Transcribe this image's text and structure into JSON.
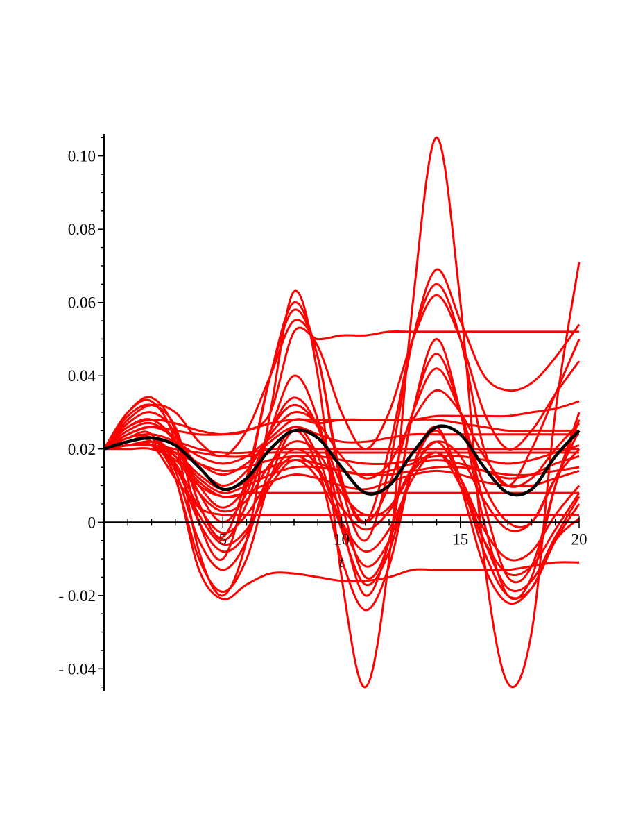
{
  "chart_data": {
    "type": "line",
    "title": "",
    "xlabel": "t",
    "ylabel": "",
    "xlim": [
      0,
      20
    ],
    "ylim": [
      -0.046,
      0.106
    ],
    "grid": false,
    "legend": "none",
    "x_ticks": [
      {
        "value": 5,
        "label": "5"
      },
      {
        "value": 10,
        "label": "10"
      },
      {
        "value": 15,
        "label": "15"
      },
      {
        "value": 20,
        "label": "20"
      }
    ],
    "y_ticks": [
      {
        "value": -0.04,
        "label": "- 0.04"
      },
      {
        "value": -0.02,
        "label": "- 0.02"
      },
      {
        "value": 0,
        "label": "0"
      },
      {
        "value": 0.02,
        "label": "0.02"
      },
      {
        "value": 0.04,
        "label": "0.04"
      },
      {
        "value": 0.06,
        "label": "0.06"
      },
      {
        "value": 0.08,
        "label": "0.08"
      },
      {
        "value": 0.1,
        "label": "0.10"
      }
    ],
    "x": [
      0,
      1,
      2,
      3,
      4,
      5,
      6,
      7,
      8,
      9,
      10,
      11,
      12,
      13,
      14,
      15,
      16,
      17,
      18,
      19,
      20
    ],
    "series": [
      {
        "color": "#000000",
        "width": 4.5,
        "values": [
          0.02,
          0.022,
          0.023,
          0.021,
          0.015,
          0.009,
          0.012,
          0.02,
          0.025,
          0.023,
          0.015,
          0.008,
          0.01,
          0.019,
          0.026,
          0.024,
          0.015,
          0.008,
          0.009,
          0.018,
          0.025
        ]
      },
      {
        "color": "#ff0000",
        "width": 3,
        "values": [
          0.02,
          0.03,
          0.033,
          0.022,
          -0.008,
          -0.02,
          -0.005,
          0.03,
          0.063,
          0.04,
          -0.015,
          -0.045,
          -0.01,
          0.06,
          0.105,
          0.06,
          -0.01,
          -0.044,
          -0.03,
          0.03,
          0.071
        ]
      },
      {
        "color": "#ff0000",
        "width": 3,
        "values": [
          0.02,
          0.03,
          0.034,
          0.025,
          0.0,
          -0.01,
          0.01,
          0.04,
          0.06,
          0.045,
          0.01,
          -0.005,
          0.015,
          0.05,
          0.069,
          0.055,
          0.04,
          0.036,
          0.038,
          0.045,
          0.054
        ]
      },
      {
        "color": "#ff0000",
        "width": 3,
        "values": [
          0.02,
          0.029,
          0.032,
          0.026,
          0.005,
          -0.004,
          0.012,
          0.04,
          0.058,
          0.045,
          0.012,
          0.0,
          0.02,
          0.05,
          0.065,
          0.05,
          0.02,
          0.01,
          0.02,
          0.035,
          0.05
        ]
      },
      {
        "color": "#ff0000",
        "width": 3,
        "values": [
          0.02,
          0.028,
          0.032,
          0.03,
          0.022,
          0.018,
          0.025,
          0.04,
          0.055,
          0.048,
          0.03,
          0.02,
          0.03,
          0.05,
          0.062,
          0.05,
          0.03,
          0.02,
          0.025,
          0.035,
          0.044
        ]
      },
      {
        "color": "#ff0000",
        "width": 3,
        "values": [
          0.02,
          0.026,
          0.028,
          0.027,
          0.025,
          0.024,
          0.025,
          0.03,
          0.052,
          0.05,
          0.051,
          0.051,
          0.052,
          0.052,
          0.052,
          0.052,
          0.052,
          0.052,
          0.052,
          0.052,
          0.052
        ]
      },
      {
        "color": "#ff0000",
        "width": 3,
        "values": [
          0.02,
          0.027,
          0.03,
          0.024,
          0.005,
          -0.005,
          0.005,
          0.025,
          0.04,
          0.028,
          0.0,
          -0.02,
          -0.005,
          0.03,
          0.05,
          0.03,
          0.0,
          -0.02,
          -0.015,
          0.01,
          0.03
        ]
      },
      {
        "color": "#ff0000",
        "width": 3,
        "values": [
          0.02,
          0.026,
          0.028,
          0.022,
          0.008,
          0.0,
          0.008,
          0.025,
          0.034,
          0.026,
          0.005,
          -0.015,
          -0.005,
          0.03,
          0.046,
          0.03,
          0.005,
          -0.015,
          -0.012,
          0.01,
          0.028
        ]
      },
      {
        "color": "#ff0000",
        "width": 3,
        "values": [
          0.02,
          0.025,
          0.027,
          0.022,
          0.01,
          0.004,
          0.01,
          0.025,
          0.032,
          0.026,
          0.01,
          0.0,
          0.01,
          0.03,
          0.042,
          0.03,
          0.01,
          0.0,
          0.0,
          0.012,
          0.025
        ]
      },
      {
        "color": "#ff0000",
        "width": 3,
        "values": [
          0.02,
          0.024,
          0.026,
          0.023,
          0.015,
          0.01,
          0.014,
          0.024,
          0.03,
          0.027,
          0.018,
          0.012,
          0.016,
          0.028,
          0.036,
          0.03,
          0.018,
          0.01,
          0.012,
          0.02,
          0.027
        ]
      },
      {
        "color": "#ff0000",
        "width": 3,
        "values": [
          0.02,
          0.023,
          0.024,
          0.022,
          0.018,
          0.016,
          0.018,
          0.023,
          0.028,
          0.027,
          0.028,
          0.028,
          0.028,
          0.028,
          0.028,
          0.027,
          0.026,
          0.025,
          0.025,
          0.025,
          0.025
        ]
      },
      {
        "color": "#ff0000",
        "width": 3,
        "values": [
          0.02,
          0.022,
          0.023,
          0.021,
          0.016,
          0.013,
          0.016,
          0.022,
          0.026,
          0.024,
          0.022,
          0.022,
          0.023,
          0.024,
          0.024,
          0.024,
          0.024,
          0.024,
          0.024,
          0.024,
          0.024
        ]
      },
      {
        "color": "#ff0000",
        "width": 3,
        "values": [
          0.02,
          0.021,
          0.022,
          0.022,
          0.02,
          0.019,
          0.019,
          0.02,
          0.02,
          0.02,
          0.02,
          0.02,
          0.02,
          0.02,
          0.02,
          0.02,
          0.02,
          0.02,
          0.02,
          0.02,
          0.02
        ]
      },
      {
        "color": "#ff0000",
        "width": 3,
        "values": [
          0.02,
          0.021,
          0.021,
          0.02,
          0.019,
          0.018,
          0.018,
          0.019,
          0.019,
          0.019,
          0.019,
          0.019,
          0.019,
          0.019,
          0.019,
          0.019,
          0.019,
          0.019,
          0.019,
          0.019,
          0.019
        ]
      },
      {
        "color": "#ff0000",
        "width": 3,
        "values": [
          0.02,
          0.021,
          0.021,
          0.019,
          0.016,
          0.014,
          0.015,
          0.017,
          0.018,
          0.018,
          0.017,
          0.016,
          0.016,
          0.017,
          0.018,
          0.018,
          0.017,
          0.016,
          0.017,
          0.019,
          0.021
        ]
      },
      {
        "color": "#ff0000",
        "width": 3,
        "values": [
          0.02,
          0.021,
          0.021,
          0.019,
          0.013,
          0.009,
          0.011,
          0.015,
          0.017,
          0.016,
          0.014,
          0.013,
          0.014,
          0.016,
          0.017,
          0.016,
          0.014,
          0.012,
          0.013,
          0.016,
          0.018
        ]
      },
      {
        "color": "#ff0000",
        "width": 3,
        "values": [
          0.02,
          0.021,
          0.022,
          0.019,
          0.012,
          0.008,
          0.01,
          0.013,
          0.015,
          0.015,
          0.014,
          0.013,
          0.013,
          0.014,
          0.015,
          0.015,
          0.014,
          0.013,
          0.013,
          0.014,
          0.015
        ]
      },
      {
        "color": "#ff0000",
        "width": 3,
        "values": [
          0.02,
          0.021,
          0.021,
          0.018,
          0.011,
          0.007,
          0.008,
          0.011,
          0.013,
          0.012,
          0.01,
          0.009,
          0.011,
          0.013,
          0.014,
          0.013,
          0.011,
          0.01,
          0.01,
          0.012,
          0.014
        ]
      },
      {
        "color": "#ff0000",
        "width": 3,
        "values": [
          0.02,
          0.02,
          0.02,
          0.017,
          0.01,
          0.007,
          0.008,
          0.008,
          0.008,
          0.008,
          0.008,
          0.008,
          0.008,
          0.008,
          0.008,
          0.008,
          0.008,
          0.008,
          0.008,
          0.008,
          0.008
        ]
      },
      {
        "color": "#ff0000",
        "width": 3,
        "values": [
          0.02,
          0.021,
          0.021,
          0.016,
          0.004,
          -0.003,
          0.002,
          0.012,
          0.018,
          0.014,
          0.004,
          -0.002,
          0.003,
          0.014,
          0.019,
          0.012,
          -0.002,
          -0.01,
          -0.008,
          0.002,
          0.01
        ]
      },
      {
        "color": "#ff0000",
        "width": 3,
        "values": [
          0.02,
          0.021,
          0.021,
          0.015,
          0.002,
          -0.006,
          -0.002,
          0.01,
          0.017,
          0.012,
          0.0,
          -0.008,
          -0.002,
          0.012,
          0.019,
          0.01,
          -0.005,
          -0.014,
          -0.012,
          -0.002,
          0.008
        ]
      },
      {
        "color": "#ff0000",
        "width": 3,
        "values": [
          0.02,
          0.022,
          0.023,
          0.016,
          0.0,
          -0.008,
          -0.003,
          0.012,
          0.02,
          0.015,
          0.0,
          -0.012,
          -0.005,
          0.014,
          0.022,
          0.012,
          -0.005,
          -0.018,
          -0.016,
          -0.004,
          0.007
        ]
      },
      {
        "color": "#ff0000",
        "width": 3,
        "values": [
          0.02,
          0.022,
          0.023,
          0.014,
          -0.005,
          -0.013,
          -0.005,
          0.015,
          0.026,
          0.018,
          -0.002,
          -0.017,
          -0.008,
          0.015,
          0.025,
          0.012,
          -0.008,
          -0.02,
          -0.018,
          -0.005,
          0.005
        ]
      },
      {
        "color": "#ff0000",
        "width": 3,
        "values": [
          0.02,
          0.023,
          0.024,
          0.012,
          -0.01,
          -0.019,
          -0.01,
          0.012,
          0.025,
          0.015,
          -0.01,
          -0.024,
          -0.012,
          0.015,
          0.026,
          0.01,
          -0.012,
          -0.022,
          -0.018,
          -0.005,
          0.001
        ]
      },
      {
        "color": "#ff0000",
        "width": 3,
        "values": [
          0.02,
          0.022,
          0.022,
          0.012,
          -0.013,
          -0.021,
          -0.017,
          -0.014,
          -0.014,
          -0.015,
          -0.016,
          -0.016,
          -0.015,
          -0.013,
          -0.013,
          -0.013,
          -0.013,
          -0.013,
          -0.012,
          -0.011,
          -0.011
        ]
      },
      {
        "color": "#ff0000",
        "width": 3,
        "values": [
          0.02,
          0.021,
          0.021,
          0.012,
          0.004,
          0.002,
          0.002,
          0.002,
          0.002,
          0.002,
          0.002,
          0.002,
          0.002,
          0.002,
          0.002,
          0.002,
          0.002,
          0.002,
          0.002,
          0.002,
          0.002
        ]
      },
      {
        "color": "#ff0000",
        "width": 3,
        "values": [
          0.02,
          0.022,
          0.023,
          0.018,
          0.008,
          0.003,
          0.006,
          0.016,
          0.022,
          0.019,
          0.008,
          0.002,
          0.004,
          0.015,
          0.022,
          0.018,
          0.006,
          -0.002,
          0.0,
          0.012,
          0.02
        ]
      },
      {
        "color": "#ff0000",
        "width": 3,
        "values": [
          0.02,
          0.024,
          0.026,
          0.025,
          0.024,
          0.024,
          0.025,
          0.027,
          0.028,
          0.028,
          0.028,
          0.028,
          0.028,
          0.028,
          0.029,
          0.029,
          0.029,
          0.029,
          0.03,
          0.031,
          0.033
        ]
      }
    ]
  }
}
